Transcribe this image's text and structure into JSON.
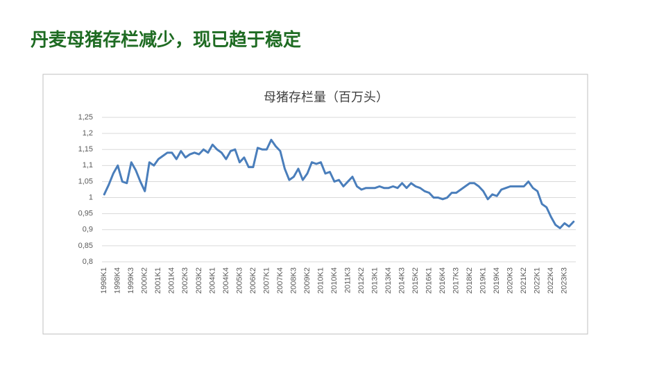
{
  "header": {
    "title": "丹麦母猪存栏减少，现已趋于稳定"
  },
  "chart_data": {
    "type": "line",
    "title": "母猪存栏量（百万头）",
    "categories": [
      "1998K1",
      null,
      null,
      "1998K4",
      null,
      null,
      "1999K3",
      null,
      null,
      "2000K2",
      null,
      null,
      "2001K1",
      null,
      null,
      "2001K4",
      null,
      null,
      "2002K3",
      null,
      null,
      "2003K2",
      null,
      null,
      "2004K1",
      null,
      null,
      "2004K4",
      null,
      null,
      "2005K3",
      null,
      null,
      "2006K2",
      null,
      null,
      "2007K1",
      null,
      null,
      "2007K4",
      null,
      null,
      "2008K3",
      null,
      null,
      "2009K2",
      null,
      null,
      "2010K1",
      null,
      null,
      "2010K4",
      null,
      null,
      "2011K3",
      null,
      null,
      "2012K2",
      null,
      null,
      "2013K1",
      null,
      null,
      "2013K4",
      null,
      null,
      "2014K3",
      null,
      null,
      "2015K2",
      null,
      null,
      "2016K1",
      null,
      null,
      "2016K4",
      null,
      null,
      "2017K3",
      null,
      null,
      "2018K2",
      null,
      null,
      "2019K1",
      null,
      null,
      "2019K4",
      null,
      null,
      "2020K3",
      null,
      null,
      "2021K2",
      null,
      null,
      "2022K1",
      null,
      null,
      "2022K4",
      null,
      null,
      "2023K3",
      null,
      null
    ],
    "values": [
      1.01,
      1.04,
      1.075,
      1.1,
      1.05,
      1.045,
      1.11,
      1.085,
      1.05,
      1.02,
      1.11,
      1.1,
      1.12,
      1.13,
      1.14,
      1.14,
      1.12,
      1.145,
      1.125,
      1.135,
      1.14,
      1.135,
      1.15,
      1.14,
      1.165,
      1.15,
      1.14,
      1.12,
      1.145,
      1.15,
      1.11,
      1.125,
      1.095,
      1.095,
      1.155,
      1.15,
      1.15,
      1.18,
      1.16,
      1.145,
      1.09,
      1.055,
      1.065,
      1.09,
      1.055,
      1.075,
      1.11,
      1.105,
      1.11,
      1.075,
      1.08,
      1.05,
      1.055,
      1.035,
      1.05,
      1.065,
      1.035,
      1.025,
      1.03,
      1.03,
      1.03,
      1.035,
      1.03,
      1.03,
      1.035,
      1.03,
      1.045,
      1.03,
      1.045,
      1.035,
      1.03,
      1.02,
      1.015,
      1.0,
      1.0,
      0.995,
      1.0,
      1.015,
      1.015,
      1.025,
      1.035,
      1.045,
      1.045,
      1.035,
      1.02,
      0.995,
      1.01,
      1.005,
      1.025,
      1.03,
      1.035,
      1.035,
      1.035,
      1.035,
      1.05,
      1.03,
      1.02,
      0.98,
      0.97,
      0.94,
      0.915,
      0.905,
      0.92,
      0.91,
      0.925
    ],
    "color": "#4a7ebb",
    "ylim": [
      0.8,
      1.25
    ],
    "yticks": [
      {
        "value": 0.8,
        "label": "0,8"
      },
      {
        "value": 0.85,
        "label": "0,85"
      },
      {
        "value": 0.9,
        "label": "0,9"
      },
      {
        "value": 0.95,
        "label": "0,95"
      },
      1,
      {
        "value": 1.05,
        "label": "1,05"
      },
      {
        "value": 1.1,
        "label": "1,1"
      },
      {
        "value": 1.15,
        "label": "1,15"
      },
      {
        "value": 1.2,
        "label": "1,2"
      },
      {
        "value": 1.25,
        "label": "1,25"
      }
    ],
    "grid": true
  }
}
